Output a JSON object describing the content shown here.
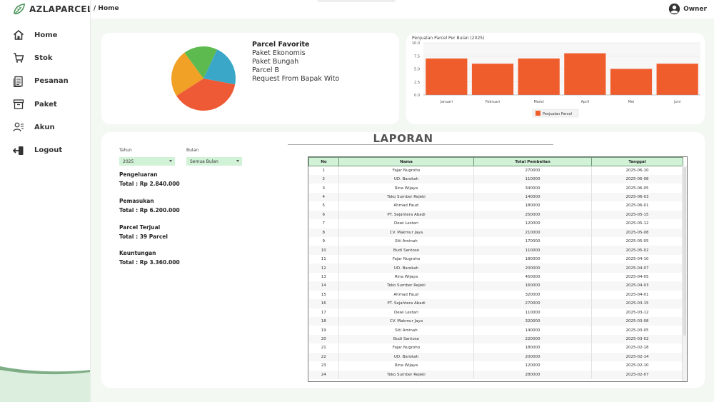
{
  "app": {
    "name": "AZLAPARCEL"
  },
  "sidebar": {
    "items": [
      {
        "label": "Home",
        "icon": "home-icon"
      },
      {
        "label": "Stok",
        "icon": "cart-icon"
      },
      {
        "label": "Pesanan",
        "icon": "document-icon"
      },
      {
        "label": "Paket",
        "icon": "box-icon"
      },
      {
        "label": "Akun",
        "icon": "user-list-icon"
      },
      {
        "label": "Logout",
        "icon": "logout-icon"
      }
    ]
  },
  "header": {
    "breadcrumb": "/ Home",
    "user": "Owner"
  },
  "favorite": {
    "title": "Parcel Favorite",
    "items": [
      "Paket Ekonomis",
      "Paket Bungah",
      "Parcel B",
      "Request From Bapak Wito"
    ],
    "pie_colors": [
      "#3aa7c9",
      "#ee5a35",
      "#f0a126",
      "#5cba4f"
    ],
    "pie_slices": [
      0.21,
      0.38,
      0.24,
      0.17
    ]
  },
  "chart_data": {
    "type": "bar",
    "title": "Penjualan Parcel Per Bulan (2025)",
    "categories": [
      "Januari",
      "Februari",
      "Maret",
      "April",
      "Mei",
      "Juni"
    ],
    "series": [
      {
        "name": "Penjualan Parcel",
        "values": [
          7,
          6,
          7,
          8,
          5,
          6
        ]
      }
    ],
    "yticks": [
      "0.0",
      "2.5",
      "5.0",
      "7.5",
      "10.0"
    ],
    "ylim": [
      0,
      10
    ],
    "legend": "bottom",
    "grid": true,
    "color": "#f05d2c"
  },
  "report": {
    "title": "LAPORAN",
    "year_label": "Tahun",
    "year_value": "2025",
    "month_label": "Bulan",
    "month_value": "Semua Bulan",
    "stats": [
      {
        "label": "Pengeluaran",
        "value": "Total : Rp 2.840.000"
      },
      {
        "label": "Pemasukan",
        "value": "Total : Rp 6.200.000"
      },
      {
        "label": "Parcel Terjual",
        "value": "Total : 39 Parcel"
      },
      {
        "label": "Keuntungan",
        "value": "Total : Rp 3.360.000"
      }
    ],
    "columns": [
      "No",
      "Nama",
      "Total Pembelian",
      "Tanggal"
    ],
    "rows": [
      [
        "1",
        "Fajar Nugroho",
        "270000",
        "2025-06-10"
      ],
      [
        "2",
        "UD. Barokah",
        "110000",
        "2025-06-08"
      ],
      [
        "3",
        "Rina Wijaya",
        "340000",
        "2025-06-05"
      ],
      [
        "4",
        "Toko Sumber Rejeki",
        "140000",
        "2025-06-03"
      ],
      [
        "5",
        "Ahmad Fauzi",
        "180000",
        "2025-06-01"
      ],
      [
        "6",
        "PT. Sejahtera Abadi",
        "250000",
        "2025-05-15"
      ],
      [
        "7",
        "Dewi Lestari",
        "120000",
        "2025-05-12"
      ],
      [
        "8",
        "CV. Makmur Jaya",
        "210000",
        "2025-05-08"
      ],
      [
        "9",
        "Siti Aminah",
        "170000",
        "2025-05-05"
      ],
      [
        "10",
        "Budi Santoso",
        "110000",
        "2025-05-02"
      ],
      [
        "11",
        "Fajar Nugroho",
        "180000",
        "2025-04-10"
      ],
      [
        "12",
        "UD. Barokah",
        "200000",
        "2025-04-07"
      ],
      [
        "13",
        "Rina Wijaya",
        "450000",
        "2025-04-05"
      ],
      [
        "14",
        "Toko Sumber Rejeki",
        "160000",
        "2025-04-03"
      ],
      [
        "15",
        "Ahmad Fauzi",
        "320000",
        "2025-04-01"
      ],
      [
        "16",
        "PT. Sejahtera Abadi",
        "270000",
        "2025-03-15"
      ],
      [
        "17",
        "Dewi Lestari",
        "110000",
        "2025-03-12"
      ],
      [
        "18",
        "CV. Makmur Jaya",
        "320000",
        "2025-03-08"
      ],
      [
        "19",
        "Siti Aminah",
        "140000",
        "2025-03-05"
      ],
      [
        "20",
        "Budi Santoso",
        "220000",
        "2025-03-02"
      ],
      [
        "21",
        "Fajar Nugroho",
        "180000",
        "2025-02-18"
      ],
      [
        "22",
        "UD. Barokah",
        "200000",
        "2025-02-14"
      ],
      [
        "23",
        "Rina Wijaya",
        "120000",
        "2025-02-10"
      ],
      [
        "24",
        "Toko Sumber Rejeki",
        "280000",
        "2025-02-07"
      ]
    ]
  }
}
